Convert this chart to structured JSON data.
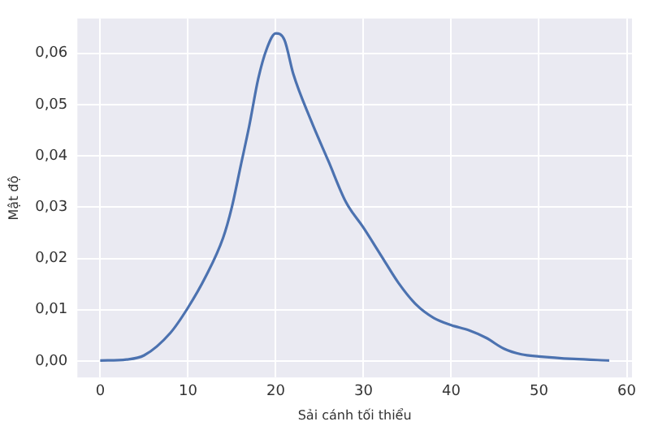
{
  "chart_data": {
    "type": "line",
    "xlabel": "Sải cánh tối thiểu",
    "ylabel": "Mật độ",
    "x": [
      0,
      3,
      5,
      8,
      10,
      12,
      14,
      15,
      16,
      17,
      18,
      19,
      20,
      21,
      22,
      24,
      26,
      28,
      30,
      32,
      34,
      36,
      38,
      40,
      42,
      44,
      46,
      48,
      50,
      54,
      58
    ],
    "series": [
      {
        "color": "#4c72b0",
        "values": [
          0.0001,
          0.0003,
          0.0011,
          0.0055,
          0.0104,
          0.0164,
          0.024,
          0.03,
          0.038,
          0.046,
          0.055,
          0.061,
          0.0639,
          0.0626,
          0.056,
          0.047,
          0.039,
          0.031,
          0.026,
          0.0206,
          0.0152,
          0.011,
          0.0084,
          0.007,
          0.006,
          0.0045,
          0.0024,
          0.0013,
          0.0009,
          0.0004,
          0.0001
        ]
      }
    ],
    "xlim": [
      -2.6,
      60.6
    ],
    "xticks": [
      0,
      10,
      20,
      30,
      40,
      50,
      60
    ],
    "ylim": [
      -0.0032,
      0.0668
    ],
    "yticks": [
      {
        "value": 0,
        "label": "0,00"
      },
      {
        "value": 0.01,
        "label": "0,01"
      },
      {
        "value": 0.02,
        "label": "0,02"
      },
      {
        "value": 0.03,
        "label": "0,03"
      },
      {
        "value": 0.04,
        "label": "0,04"
      },
      {
        "value": 0.05,
        "label": "0,05"
      },
      {
        "value": 0.06,
        "label": "0,06"
      }
    ],
    "grid": true,
    "legend": false,
    "marker": "none",
    "line_style": "solid"
  }
}
